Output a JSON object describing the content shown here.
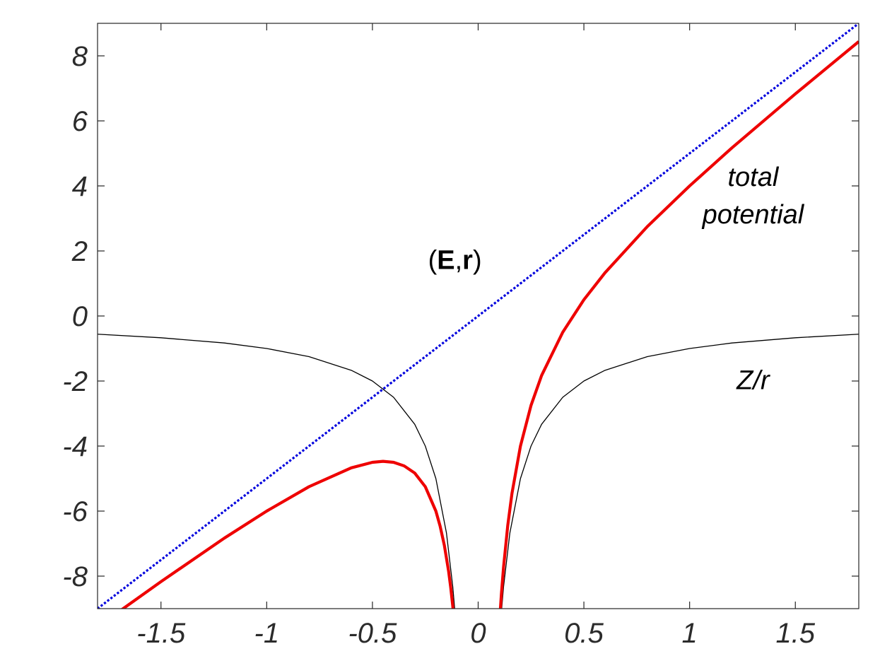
{
  "chart_data": {
    "type": "line",
    "xlim": [
      -1.8,
      1.8
    ],
    "ylim": [
      -9,
      9
    ],
    "xticks": [
      -1.5,
      -1,
      -0.5,
      0,
      0.5,
      1,
      1.5
    ],
    "xtick_labels": [
      "-1.5",
      "-1",
      "-0.5",
      "0",
      "0.5",
      "1",
      "1.5"
    ],
    "yticks": [
      -8,
      -6,
      -4,
      -2,
      0,
      2,
      4,
      6,
      8
    ],
    "ytick_labels": [
      "-8",
      "-6",
      "-4",
      "-2",
      "0",
      "2",
      "4",
      "6",
      "8"
    ],
    "grid": false,
    "series": [
      {
        "key": "field",
        "style": "dotted",
        "color": "#0000dd",
        "x": [
          -1.8,
          -1.5,
          -1.0,
          -0.5,
          -0.45,
          0.0,
          0.5,
          1.0,
          1.5,
          1.8
        ],
        "y": [
          -9.0,
          -7.5,
          -5.0,
          -2.5,
          -2.25,
          0.0,
          2.5,
          5.0,
          7.5,
          9.0
        ]
      },
      {
        "key": "coulomb",
        "style": "solid-thin",
        "color": "#000000",
        "x": [
          -1.8,
          -1.5,
          -1.2,
          -1.0,
          -0.8,
          -0.6,
          -0.5,
          -0.4,
          -0.3,
          -0.25,
          -0.2,
          -0.15,
          -0.12,
          -0.11,
          -0.1,
          0.1,
          0.11,
          0.12,
          0.15,
          0.2,
          0.25,
          0.3,
          0.4,
          0.5,
          0.6,
          0.8,
          1.0,
          1.2,
          1.5,
          1.8
        ],
        "y": [
          -0.56,
          -0.67,
          -0.83,
          -1.0,
          -1.25,
          -1.67,
          -2.0,
          -2.5,
          -3.33,
          -4.0,
          -5.0,
          -6.67,
          -8.33,
          -9.09,
          -10.0,
          -10.0,
          -9.09,
          -8.33,
          -6.67,
          -5.0,
          -4.0,
          -3.33,
          -2.5,
          -2.0,
          -1.67,
          -1.25,
          -1.0,
          -0.83,
          -0.67,
          -0.56
        ]
      },
      {
        "key": "total",
        "style": "solid-thick",
        "color": "#ee0000",
        "x": [
          -1.8,
          -1.5,
          -1.2,
          -1.0,
          -0.8,
          -0.6,
          -0.5,
          -0.45,
          -0.4,
          -0.35,
          -0.3,
          -0.25,
          -0.2,
          -0.18,
          -0.16,
          -0.14,
          -0.13,
          -0.12,
          -0.115,
          -0.11,
          0.09,
          0.095,
          0.1,
          0.11,
          0.12,
          0.14,
          0.16,
          0.2,
          0.25,
          0.3,
          0.4,
          0.5,
          0.6,
          0.8,
          1.0,
          1.2,
          1.5,
          1.8
        ],
        "y": [
          -9.56,
          -8.17,
          -6.83,
          -6.0,
          -5.25,
          -4.67,
          -4.5,
          -4.47,
          -4.5,
          -4.61,
          -4.83,
          -5.25,
          -6.0,
          -6.46,
          -7.05,
          -7.84,
          -8.34,
          -8.93,
          -9.27,
          -9.64,
          -10.66,
          -10.05,
          -9.5,
          -8.54,
          -7.73,
          -6.44,
          -5.45,
          -4.0,
          -2.75,
          -1.83,
          -0.5,
          0.5,
          1.33,
          2.75,
          4.0,
          5.17,
          6.83,
          8.44
        ]
      }
    ],
    "annotations": [
      {
        "key": "field_label",
        "x": -0.11,
        "y": 1.45,
        "parts": [
          "(",
          "E",
          ",",
          "r",
          ")"
        ]
      },
      {
        "key": "total_line1",
        "x": 1.3,
        "y": 4.0,
        "text": "total"
      },
      {
        "key": "total_line2",
        "x": 1.3,
        "y": 2.85,
        "text": "potential"
      },
      {
        "key": "coulomb_label",
        "x": 1.3,
        "y": -2.25,
        "text": "Z/r"
      }
    ]
  }
}
